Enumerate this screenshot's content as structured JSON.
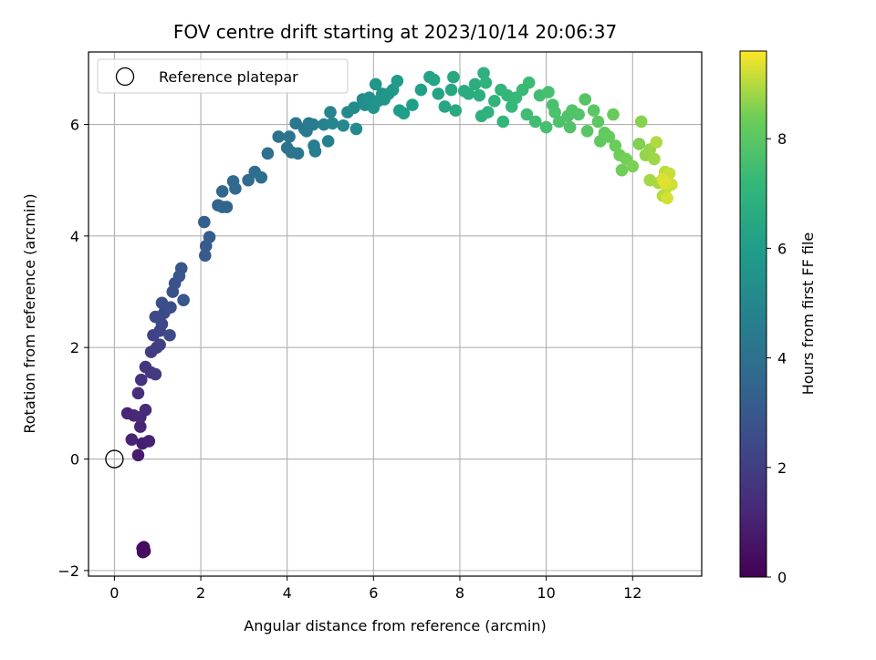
{
  "chart_data": {
    "type": "scatter",
    "title": "FOV centre drift starting at 2023/10/14 20:06:37",
    "xlabel": "Angular distance from reference (arcmin)",
    "ylabel": "Rotation from reference (arcmin)",
    "xlim": [
      -0.6,
      13.6
    ],
    "ylim": [
      -2.1,
      7.3
    ],
    "xticks": [
      0,
      2,
      4,
      6,
      8,
      10,
      12
    ],
    "yticks": [
      -2,
      0,
      2,
      4,
      6
    ],
    "grid": true,
    "legend": {
      "placement": "top-left",
      "entries": [
        "Reference platepar"
      ]
    },
    "reference_point": {
      "x": 0,
      "y": 0
    },
    "colorbar": {
      "label": "Hours from first FF file",
      "colormap": "viridis",
      "range": [
        0,
        9.6
      ],
      "ticks": [
        0,
        2,
        4,
        6,
        8
      ]
    },
    "points": [
      [
        0.65,
        -1.6,
        0.2
      ],
      [
        0.7,
        -1.65,
        0.25
      ],
      [
        0.68,
        -1.58,
        0.3
      ],
      [
        0.66,
        -1.67,
        0.35
      ],
      [
        0.55,
        0.07,
        0.8
      ],
      [
        0.65,
        0.28,
        0.9
      ],
      [
        0.8,
        0.32,
        1.0
      ],
      [
        0.4,
        0.35,
        1.05
      ],
      [
        0.6,
        0.58,
        1.1
      ],
      [
        0.3,
        0.82,
        1.15
      ],
      [
        0.45,
        0.78,
        1.2
      ],
      [
        0.6,
        0.75,
        1.3
      ],
      [
        0.72,
        0.88,
        1.35
      ],
      [
        0.55,
        1.18,
        1.5
      ],
      [
        0.62,
        1.42,
        1.6
      ],
      [
        0.72,
        1.65,
        1.7
      ],
      [
        0.85,
        1.55,
        1.8
      ],
      [
        0.95,
        1.52,
        1.85
      ],
      [
        0.85,
        1.92,
        1.95
      ],
      [
        0.98,
        2.0,
        2.0
      ],
      [
        1.05,
        2.05,
        2.05
      ],
      [
        0.9,
        2.22,
        2.15
      ],
      [
        1.05,
        2.3,
        2.25
      ],
      [
        1.1,
        2.42,
        2.35
      ],
      [
        0.95,
        2.55,
        2.4
      ],
      [
        1.15,
        2.62,
        2.45
      ],
      [
        1.28,
        2.22,
        2.5
      ],
      [
        1.3,
        2.72,
        2.55
      ],
      [
        1.1,
        2.8,
        2.6
      ],
      [
        1.35,
        3.0,
        2.7
      ],
      [
        1.4,
        3.15,
        2.8
      ],
      [
        1.5,
        3.28,
        2.85
      ],
      [
        1.55,
        3.42,
        2.9
      ],
      [
        1.6,
        2.85,
        2.95
      ],
      [
        2.1,
        3.65,
        3.1
      ],
      [
        2.12,
        3.82,
        3.15
      ],
      [
        2.2,
        3.98,
        3.2
      ],
      [
        2.08,
        4.25,
        3.25
      ],
      [
        2.4,
        4.55,
        3.4
      ],
      [
        2.5,
        4.52,
        3.45
      ],
      [
        2.6,
        4.52,
        3.5
      ],
      [
        2.5,
        4.8,
        3.55
      ],
      [
        2.8,
        4.85,
        3.65
      ],
      [
        2.75,
        4.98,
        3.7
      ],
      [
        3.1,
        5.0,
        3.8
      ],
      [
        3.25,
        5.15,
        3.85
      ],
      [
        3.4,
        5.05,
        3.9
      ],
      [
        3.55,
        5.48,
        3.95
      ],
      [
        3.8,
        5.78,
        4.05
      ],
      [
        4.0,
        5.58,
        4.1
      ],
      [
        4.1,
        5.5,
        4.15
      ],
      [
        4.05,
        5.78,
        4.2
      ],
      [
        4.25,
        5.48,
        4.25
      ],
      [
        4.2,
        6.02,
        4.3
      ],
      [
        4.4,
        5.92,
        4.35
      ],
      [
        4.5,
        6.02,
        4.4
      ],
      [
        4.45,
        5.88,
        4.45
      ],
      [
        4.6,
        6.0,
        4.5
      ],
      [
        4.65,
        5.52,
        4.55
      ],
      [
        4.62,
        5.62,
        4.6
      ],
      [
        4.95,
        5.7,
        4.7
      ],
      [
        4.85,
        6.0,
        4.8
      ],
      [
        5.0,
        6.22,
        4.9
      ],
      [
        5.05,
        6.02,
        5.0
      ],
      [
        5.3,
        5.98,
        5.05
      ],
      [
        5.4,
        6.22,
        5.1
      ],
      [
        5.6,
        5.92,
        5.15
      ],
      [
        5.55,
        6.3,
        5.2
      ],
      [
        5.75,
        6.45,
        5.25
      ],
      [
        5.8,
        6.35,
        5.3
      ],
      [
        5.9,
        6.48,
        5.4
      ],
      [
        6.0,
        6.3,
        5.5
      ],
      [
        6.1,
        6.42,
        5.55
      ],
      [
        6.25,
        6.45,
        5.6
      ],
      [
        6.2,
        6.55,
        5.62
      ],
      [
        6.05,
        6.72,
        5.65
      ],
      [
        6.35,
        6.55,
        5.7
      ],
      [
        6.45,
        6.62,
        5.8
      ],
      [
        6.55,
        6.78,
        5.9
      ],
      [
        6.6,
        6.25,
        5.95
      ],
      [
        6.7,
        6.2,
        6.0
      ],
      [
        6.9,
        6.35,
        6.05
      ],
      [
        7.1,
        6.62,
        6.1
      ],
      [
        7.3,
        6.85,
        6.2
      ],
      [
        7.5,
        6.55,
        6.3
      ],
      [
        7.4,
        6.8,
        6.35
      ],
      [
        7.65,
        6.32,
        6.4
      ],
      [
        7.8,
        6.62,
        6.45
      ],
      [
        7.85,
        6.85,
        6.5
      ],
      [
        7.9,
        6.25,
        6.55
      ],
      [
        8.1,
        6.6,
        6.6
      ],
      [
        8.2,
        6.55,
        6.65
      ],
      [
        8.35,
        6.72,
        6.7
      ],
      [
        8.45,
        6.52,
        6.75
      ],
      [
        8.5,
        6.15,
        6.8
      ],
      [
        8.55,
        6.92,
        6.85
      ],
      [
        8.65,
        6.22,
        6.9
      ],
      [
        8.6,
        6.75,
        6.95
      ],
      [
        8.8,
        6.42,
        7.0
      ],
      [
        8.95,
        6.62,
        7.05
      ],
      [
        9.0,
        6.05,
        7.1
      ],
      [
        9.1,
        6.52,
        7.15
      ],
      [
        9.2,
        6.32,
        7.2
      ],
      [
        9.3,
        6.48,
        7.25
      ],
      [
        9.45,
        6.62,
        7.3
      ],
      [
        9.6,
        6.75,
        7.35
      ],
      [
        9.55,
        6.18,
        7.4
      ],
      [
        9.75,
        6.05,
        7.45
      ],
      [
        9.85,
        6.52,
        7.5
      ],
      [
        10.0,
        5.95,
        7.55
      ],
      [
        10.05,
        6.58,
        7.6
      ],
      [
        10.15,
        6.35,
        7.65
      ],
      [
        10.2,
        6.22,
        7.7
      ],
      [
        10.3,
        6.05,
        7.72
      ],
      [
        10.5,
        6.15,
        7.75
      ],
      [
        10.6,
        6.25,
        7.8
      ],
      [
        10.55,
        5.95,
        7.82
      ],
      [
        10.75,
        6.18,
        7.85
      ],
      [
        10.9,
        6.45,
        7.9
      ],
      [
        10.95,
        5.88,
        7.95
      ],
      [
        11.1,
        6.25,
        8.0
      ],
      [
        11.2,
        6.05,
        8.05
      ],
      [
        11.25,
        5.7,
        8.1
      ],
      [
        11.35,
        5.85,
        8.15
      ],
      [
        11.45,
        5.78,
        8.2
      ],
      [
        11.55,
        6.18,
        8.25
      ],
      [
        11.6,
        5.62,
        8.3
      ],
      [
        11.7,
        5.45,
        8.35
      ],
      [
        11.75,
        5.18,
        8.4
      ],
      [
        11.85,
        5.38,
        8.45
      ],
      [
        12.0,
        5.25,
        8.5
      ],
      [
        12.15,
        5.65,
        8.55
      ],
      [
        12.2,
        6.05,
        8.6
      ],
      [
        12.3,
        5.45,
        8.7
      ],
      [
        12.4,
        5.55,
        8.75
      ],
      [
        12.5,
        5.38,
        8.8
      ],
      [
        12.4,
        5.0,
        8.85
      ],
      [
        12.6,
        4.95,
        8.9
      ],
      [
        12.55,
        5.68,
        8.95
      ],
      [
        12.7,
        4.72,
        9.0
      ],
      [
        12.75,
        5.15,
        9.05
      ],
      [
        12.8,
        4.88,
        9.1
      ],
      [
        12.85,
        5.12,
        9.15
      ],
      [
        12.9,
        4.92,
        9.2
      ],
      [
        12.8,
        4.68,
        9.25
      ],
      [
        12.7,
        5.02,
        9.3
      ],
      [
        12.75,
        4.95,
        9.35
      ]
    ]
  }
}
